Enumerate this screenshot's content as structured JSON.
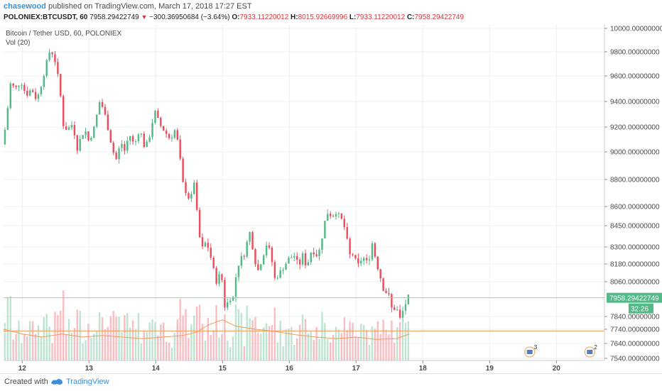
{
  "header": {
    "user": "chasewood",
    "published_text": "published on TradingView.com, March 17, 2018 17:27 EST"
  },
  "symbol_bar": {
    "symbol": "POLONIEX:BTCUSDT, 60",
    "last": "7958.29422749",
    "change_arrow": "▼",
    "change": "−300.36950684 (−3.64%)",
    "o_label": "O:",
    "o_value": "7933.11220012",
    "h_label": "H:",
    "h_value": "8015.92669996",
    "l_label": "L:",
    "l_value": "7933.11220012",
    "c_label": "C:",
    "c_value": "7958.29422749"
  },
  "chart_data": {
    "type": "candlestick",
    "title": "Bitcoin / Tether USD, 60, POLONIEX",
    "volume_label": "Vol (20)",
    "x_ticks": [
      {
        "label": "12",
        "day": 12
      },
      {
        "label": "13",
        "day": 13
      },
      {
        "label": "14",
        "day": 14
      },
      {
        "label": "15",
        "day": 15
      },
      {
        "label": "16",
        "day": 16
      },
      {
        "label": "17",
        "day": 17
      },
      {
        "label": "18",
        "day": 18
      },
      {
        "label": "19",
        "day": 19
      },
      {
        "label": "20",
        "day": 20
      }
    ],
    "y_ticks": [
      "10000.00000000",
      "9800.00000000",
      "9600.00000000",
      "9400.00000000",
      "9200.00000000",
      "9000.00000000",
      "8800.00000000",
      "8600.00000000",
      "8450.00000000",
      "8300.00000000",
      "8180.00000000",
      "8060.00000000",
      "7840.00000000",
      "7740.00000000",
      "7640.00000000",
      "7540.00000000"
    ],
    "y_tick_values": [
      10000,
      9800,
      9600,
      9400,
      9200,
      9000,
      8800,
      8600,
      8450,
      8300,
      8180,
      8060,
      7840,
      7740,
      7640,
      7540
    ],
    "ylim": [
      7530,
      10030
    ],
    "xlim_days": [
      11.72,
      20.72
    ],
    "last_price_label": "7958.29422749",
    "countdown_label": "32:26",
    "last_price": 7958.29,
    "horizontal_line": 7728,
    "events": [
      {
        "day": 19.6,
        "count": "3"
      },
      {
        "day": 20.5,
        "count": "2"
      }
    ],
    "up_color": "#53b987",
    "down_color": "#eb4d5c",
    "ma_color": "#f39a55",
    "line_color": "#f39a55",
    "price_path": [
      [
        11.72,
        9060
      ],
      [
        11.78,
        9230
      ],
      [
        11.84,
        9540
      ],
      [
        11.92,
        9500
      ],
      [
        12.0,
        9560
      ],
      [
        12.08,
        9450
      ],
      [
        12.16,
        9500
      ],
      [
        12.24,
        9410
      ],
      [
        12.32,
        9560
      ],
      [
        12.38,
        9700
      ],
      [
        12.44,
        9820
      ],
      [
        12.5,
        9760
      ],
      [
        12.58,
        9520
      ],
      [
        12.64,
        9200
      ],
      [
        12.7,
        9180
      ],
      [
        12.78,
        9230
      ],
      [
        12.84,
        9020
      ],
      [
        12.9,
        9120
      ],
      [
        12.96,
        9180
      ],
      [
        13.02,
        9080
      ],
      [
        13.1,
        9200
      ],
      [
        13.18,
        9400
      ],
      [
        13.24,
        9340
      ],
      [
        13.3,
        9200
      ],
      [
        13.36,
        9050
      ],
      [
        13.42,
        8930
      ],
      [
        13.5,
        9080
      ],
      [
        13.56,
        9000
      ],
      [
        13.62,
        9150
      ],
      [
        13.7,
        9050
      ],
      [
        13.78,
        9190
      ],
      [
        13.86,
        9020
      ],
      [
        13.94,
        9150
      ],
      [
        14.0,
        9330
      ],
      [
        14.08,
        9220
      ],
      [
        14.16,
        9160
      ],
      [
        14.24,
        9100
      ],
      [
        14.3,
        9180
      ],
      [
        14.36,
        9060
      ],
      [
        14.42,
        8780
      ],
      [
        14.48,
        8700
      ],
      [
        14.54,
        8640
      ],
      [
        14.6,
        8800
      ],
      [
        14.66,
        8400
      ],
      [
        14.72,
        8290
      ],
      [
        14.78,
        8340
      ],
      [
        14.86,
        8200
      ],
      [
        14.92,
        8060
      ],
      [
        15.0,
        8120
      ],
      [
        15.06,
        7880
      ],
      [
        15.12,
        7960
      ],
      [
        15.18,
        7960
      ],
      [
        15.24,
        8160
      ],
      [
        15.3,
        8220
      ],
      [
        15.36,
        8260
      ],
      [
        15.42,
        8420
      ],
      [
        15.48,
        8280
      ],
      [
        15.54,
        8120
      ],
      [
        15.6,
        8200
      ],
      [
        15.68,
        8320
      ],
      [
        15.74,
        8260
      ],
      [
        15.8,
        8080
      ],
      [
        15.88,
        8120
      ],
      [
        15.96,
        8180
      ],
      [
        16.02,
        8220
      ],
      [
        16.1,
        8240
      ],
      [
        16.16,
        8160
      ],
      [
        16.22,
        8240
      ],
      [
        16.28,
        8160
      ],
      [
        16.36,
        8290
      ],
      [
        16.42,
        8240
      ],
      [
        16.48,
        8280
      ],
      [
        16.54,
        8460
      ],
      [
        16.6,
        8560
      ],
      [
        16.66,
        8520
      ],
      [
        16.72,
        8560
      ],
      [
        16.8,
        8500
      ],
      [
        16.86,
        8420
      ],
      [
        16.92,
        8240
      ],
      [
        16.98,
        8250
      ],
      [
        17.04,
        8160
      ],
      [
        17.12,
        8230
      ],
      [
        17.2,
        8180
      ],
      [
        17.26,
        8330
      ],
      [
        17.32,
        8200
      ],
      [
        17.38,
        8100
      ],
      [
        17.44,
        8000
      ],
      [
        17.5,
        7990
      ],
      [
        17.56,
        7880
      ],
      [
        17.62,
        7900
      ],
      [
        17.68,
        7820
      ],
      [
        17.74,
        7900
      ],
      [
        17.8,
        7960
      ]
    ],
    "volume_ma": [
      [
        11.72,
        0.4
      ],
      [
        12.0,
        0.34
      ],
      [
        12.3,
        0.3
      ],
      [
        12.6,
        0.34
      ],
      [
        12.9,
        0.3
      ],
      [
        13.2,
        0.32
      ],
      [
        13.5,
        0.3
      ],
      [
        13.8,
        0.28
      ],
      [
        14.1,
        0.3
      ],
      [
        14.4,
        0.32
      ],
      [
        14.6,
        0.36
      ],
      [
        14.8,
        0.46
      ],
      [
        15.0,
        0.52
      ],
      [
        15.2,
        0.44
      ],
      [
        15.5,
        0.4
      ],
      [
        15.8,
        0.37
      ],
      [
        16.1,
        0.33
      ],
      [
        16.4,
        0.3
      ],
      [
        16.7,
        0.28
      ],
      [
        17.0,
        0.3
      ],
      [
        17.3,
        0.27
      ],
      [
        17.6,
        0.28
      ],
      [
        17.8,
        0.34
      ]
    ]
  },
  "footer": {
    "created_with": "Created with",
    "tradingview": "TradingView"
  }
}
